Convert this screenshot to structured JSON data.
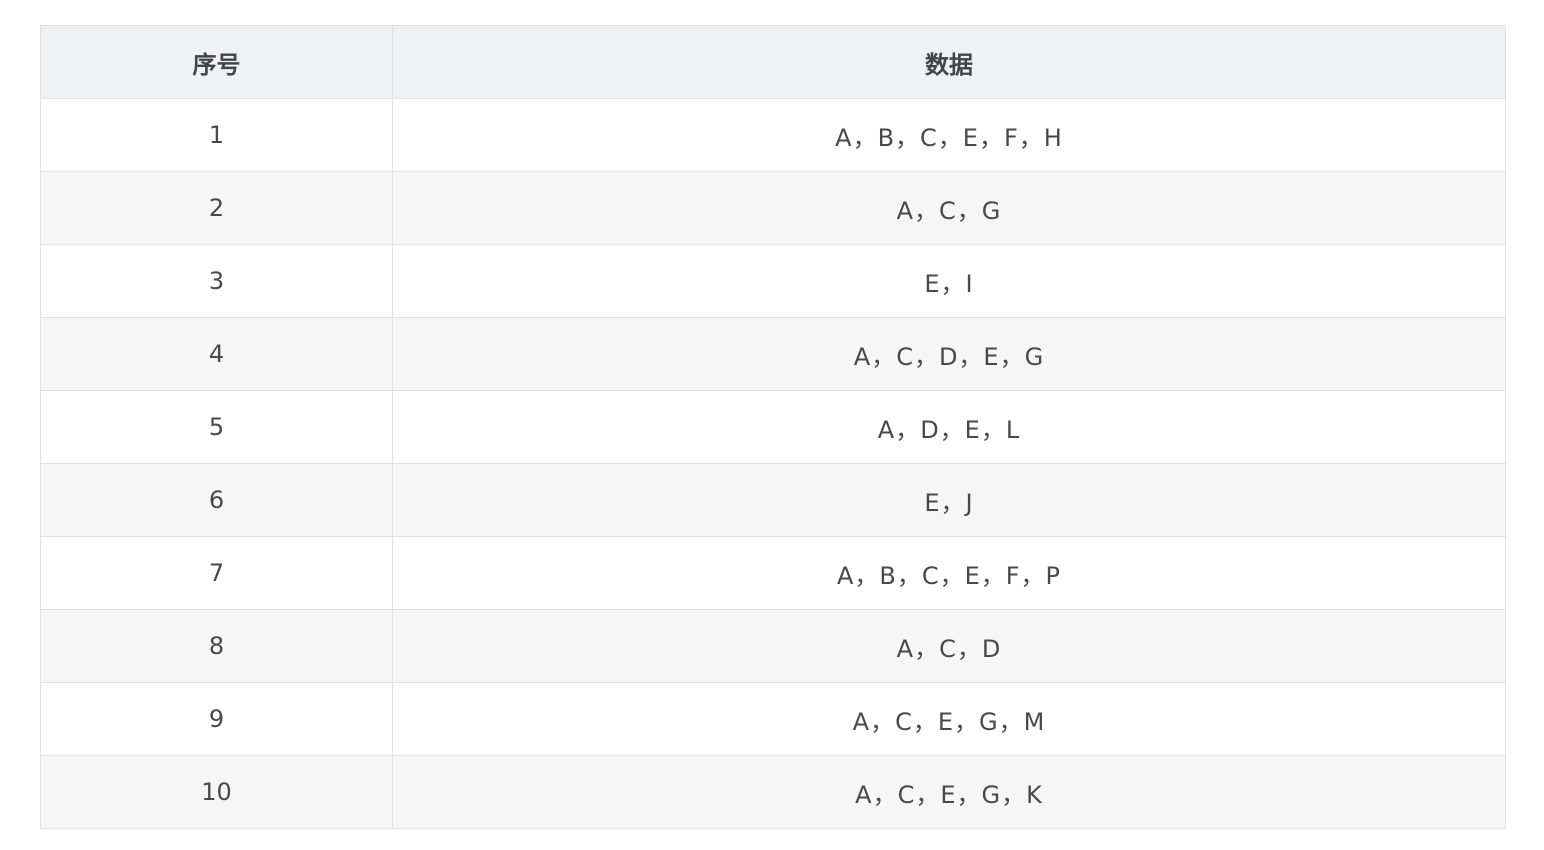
{
  "table": {
    "headers": [
      "序号",
      "数据"
    ],
    "rows": [
      {
        "index": "1",
        "data": "A，B，C，E，F，H"
      },
      {
        "index": "2",
        "data": "A，C，G"
      },
      {
        "index": "3",
        "data": "E，I"
      },
      {
        "index": "4",
        "data": "A，C，D，E，G"
      },
      {
        "index": "5",
        "data": "A，D，E，L"
      },
      {
        "index": "6",
        "data": "E，J"
      },
      {
        "index": "7",
        "data": "A，B，C，E，F，P"
      },
      {
        "index": "8",
        "data": "A，C，D"
      },
      {
        "index": "9",
        "data": "A，C，E，G，M"
      },
      {
        "index": "10",
        "data": "A，C，E，G，K"
      }
    ]
  }
}
